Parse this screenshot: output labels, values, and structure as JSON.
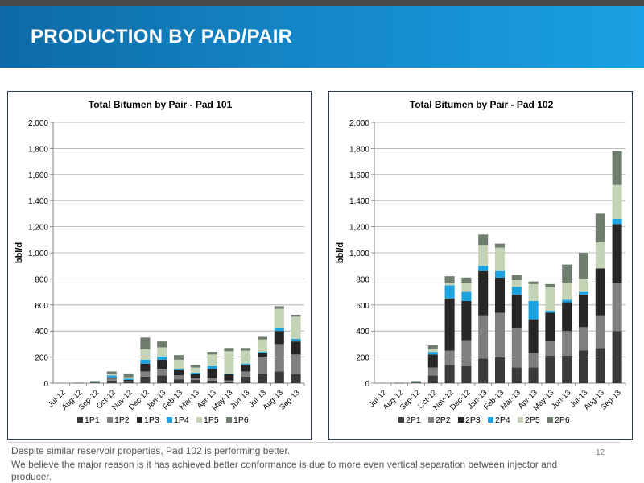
{
  "slide": {
    "title": "PRODUCTION BY PAD/PAIR",
    "page_number": "12",
    "notes": [
      "Despite similar reservoir properties, Pad 102 is performing better.",
      "We believe the major reason is it has achieved better conformance is due to  more even vertical separation between injector and producer."
    ]
  },
  "chart_data": [
    {
      "type": "bar",
      "stacked": true,
      "title": "Total Bitumen by Pair - Pad 101",
      "ylabel": "bbl/d",
      "xlabel": "",
      "ylim": [
        0,
        2000
      ],
      "yticks": [
        "0",
        "200",
        "400",
        "600",
        "800",
        "1,000",
        "1,200",
        "1,400",
        "1,600",
        "1,800",
        "2,000"
      ],
      "grid": true,
      "legend_position": "bottom",
      "categories": [
        "Jul-12",
        "Aug-12",
        "Sep-12",
        "Oct-12",
        "Nov-12",
        "Dec-12",
        "Jan-13",
        "Feb-13",
        "Mar-13",
        "Apr-13",
        "May-13",
        "Jun-13",
        "Jul-13",
        "Aug-13",
        "Sep-13"
      ],
      "series": [
        {
          "name": "1P1",
          "color": "#3a3a3a",
          "values": [
            0,
            2,
            5,
            20,
            10,
            50,
            60,
            30,
            25,
            20,
            10,
            50,
            70,
            90,
            70
          ]
        },
        {
          "name": "1P2",
          "color": "#7f7f7f",
          "values": [
            0,
            0,
            3,
            15,
            5,
            40,
            50,
            30,
            15,
            20,
            10,
            40,
            130,
            210,
            150
          ]
        },
        {
          "name": "1P3",
          "color": "#262626",
          "values": [
            0,
            0,
            2,
            10,
            10,
            60,
            70,
            40,
            30,
            70,
            50,
            50,
            30,
            100,
            100
          ]
        },
        {
          "name": "1P4",
          "color": "#1aa3e0",
          "values": [
            0,
            0,
            2,
            15,
            10,
            30,
            25,
            10,
            10,
            20,
            5,
            10,
            10,
            20,
            20
          ]
        },
        {
          "name": "1P5",
          "color": "#c4d3b6",
          "values": [
            0,
            0,
            2,
            10,
            10,
            80,
            70,
            70,
            40,
            90,
            170,
            100,
            95,
            150,
            170
          ]
        },
        {
          "name": "1P6",
          "color": "#6f7d6f",
          "values": [
            0,
            0,
            2,
            20,
            30,
            90,
            45,
            35,
            20,
            20,
            25,
            20,
            20,
            20,
            15
          ]
        }
      ]
    },
    {
      "type": "bar",
      "stacked": true,
      "title": "Total Bitumen by Pair - Pad 102",
      "ylabel": "bbl/d",
      "xlabel": "",
      "ylim": [
        0,
        2000
      ],
      "yticks": [
        "0",
        "200",
        "400",
        "600",
        "800",
        "1,000",
        "1,200",
        "1,400",
        "1,600",
        "1,800",
        "2,000"
      ],
      "grid": true,
      "legend_position": "bottom",
      "categories": [
        "Jul-12",
        "Aug-12",
        "Sep-12",
        "Oct-12",
        "Nov-12",
        "Dec-12",
        "Jan-13",
        "Feb-13",
        "Mar-13",
        "Apr-13",
        "May-13",
        "Jun-13",
        "Jul-13",
        "Aug-13",
        "Sep-13"
      ],
      "series": [
        {
          "name": "2P1",
          "color": "#3a3a3a",
          "values": [
            0,
            2,
            5,
            60,
            140,
            130,
            190,
            200,
            120,
            120,
            210,
            210,
            250,
            270,
            400
          ]
        },
        {
          "name": "2P2",
          "color": "#7f7f7f",
          "values": [
            0,
            0,
            3,
            60,
            110,
            200,
            330,
            340,
            300,
            110,
            110,
            190,
            180,
            250,
            370
          ]
        },
        {
          "name": "2P3",
          "color": "#262626",
          "values": [
            0,
            0,
            2,
            100,
            400,
            300,
            340,
            270,
            260,
            260,
            220,
            220,
            250,
            360,
            450
          ]
        },
        {
          "name": "2P4",
          "color": "#1aa3e0",
          "values": [
            0,
            0,
            2,
            20,
            100,
            70,
            40,
            50,
            60,
            140,
            15,
            20,
            20,
            0,
            40
          ]
        },
        {
          "name": "2P5",
          "color": "#c4d3b6",
          "values": [
            0,
            0,
            2,
            20,
            20,
            70,
            160,
            180,
            50,
            130,
            180,
            130,
            100,
            200,
            260
          ]
        },
        {
          "name": "2P6",
          "color": "#6f7d6f",
          "values": [
            0,
            0,
            2,
            30,
            50,
            40,
            80,
            30,
            40,
            20,
            25,
            140,
            200,
            220,
            260
          ]
        }
      ]
    }
  ]
}
